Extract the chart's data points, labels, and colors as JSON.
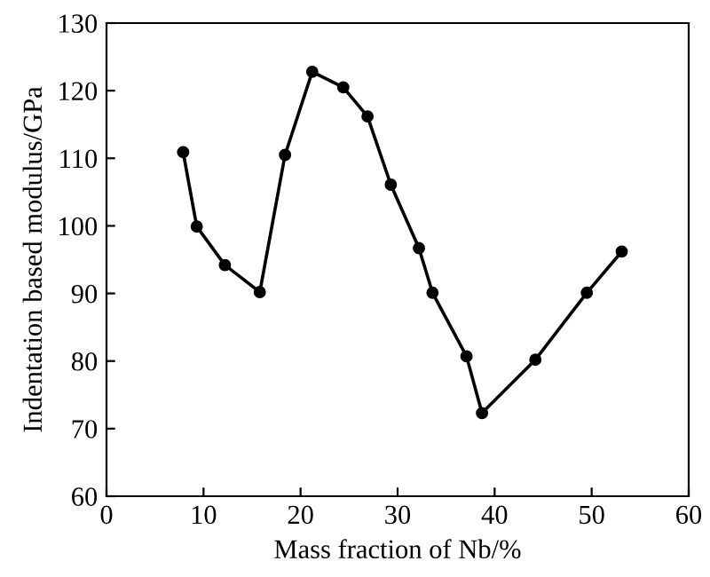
{
  "chart_data": {
    "type": "line",
    "xlabel": "Mass fraction of Nb/%",
    "ylabel": "Indentation based modulus/GPa",
    "xlim": [
      0,
      60
    ],
    "ylim": [
      60,
      130
    ],
    "xticks": [
      0,
      10,
      20,
      30,
      40,
      50,
      60
    ],
    "yticks": [
      60,
      70,
      80,
      90,
      100,
      110,
      120,
      130
    ],
    "marker": "circle",
    "line_style": "solid",
    "grid": false,
    "series": [
      {
        "color": "#000000",
        "x": [
          7.9,
          9.3,
          12.2,
          15.8,
          18.4,
          21.2,
          24.4,
          26.9,
          29.3,
          32.2,
          33.6,
          37.1,
          38.7,
          44.2,
          49.5,
          53.1
        ],
        "values": [
          110.9,
          99.9,
          94.2,
          90.2,
          110.5,
          122.8,
          120.5,
          116.2,
          106.1,
          96.7,
          90.1,
          80.7,
          72.3,
          80.2,
          90.1,
          96.2
        ]
      }
    ]
  }
}
